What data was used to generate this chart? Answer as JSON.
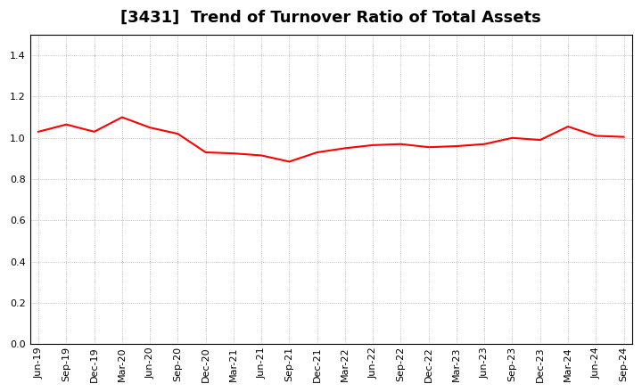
{
  "title": "[3431]  Trend of Turnover Ratio of Total Assets",
  "x_labels": [
    "Jun-19",
    "Sep-19",
    "Dec-19",
    "Mar-20",
    "Jun-20",
    "Sep-20",
    "Dec-20",
    "Mar-21",
    "Jun-21",
    "Sep-21",
    "Dec-21",
    "Mar-22",
    "Jun-22",
    "Sep-22",
    "Dec-22",
    "Mar-23",
    "Jun-23",
    "Sep-23",
    "Dec-23",
    "Mar-24",
    "Jun-24",
    "Sep-24"
  ],
  "y_values": [
    1.03,
    1.065,
    1.03,
    1.1,
    1.05,
    1.02,
    0.93,
    0.925,
    0.915,
    0.885,
    0.93,
    0.95,
    0.965,
    0.97,
    0.955,
    0.96,
    0.97,
    1.0,
    0.99,
    1.055,
    1.01,
    1.005
  ],
  "line_color": "#FF0000",
  "line_width": 1.5,
  "ylim": [
    0.0,
    1.5
  ],
  "yticks": [
    0.0,
    0.2,
    0.4,
    0.6,
    0.8,
    1.0,
    1.2,
    1.4
  ],
  "background_color": "#FFFFFF",
  "plot_bg_color": "#FFFFFF",
  "grid_color": "#AAAAAA",
  "title_fontsize": 13,
  "tick_fontsize": 8
}
